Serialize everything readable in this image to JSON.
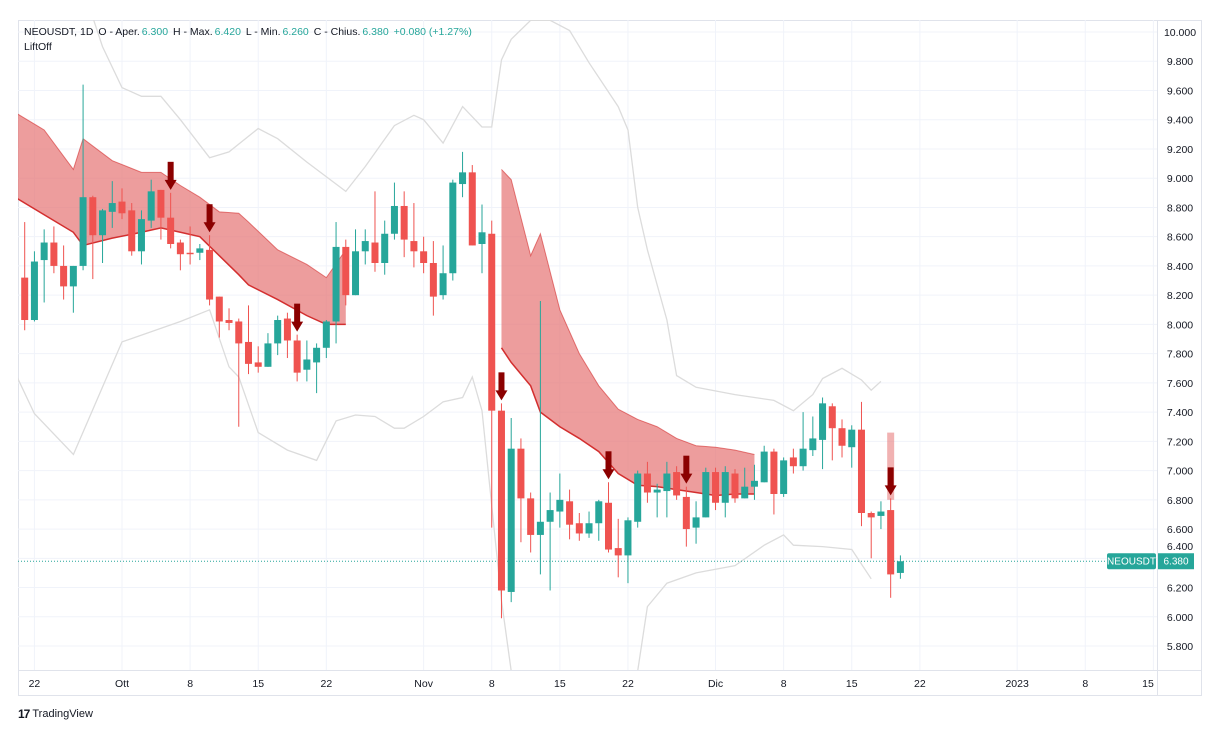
{
  "header": {
    "symbol": "NEOUSDT, 1D",
    "open_label": "O - Aper.",
    "open": "6.300",
    "high_label": "H - Max.",
    "high": "6.420",
    "low_label": "L - Min.",
    "low": "6.260",
    "close_label": "C - Chius.",
    "close": "6.380",
    "change": "+0.080 (+1.27%)",
    "indicator": "LiftOff"
  },
  "price_tag": {
    "symbol": "NEOUSDT",
    "value": "6.380"
  },
  "branding": {
    "logo_text": "TradingView"
  },
  "colors": {
    "up": "#26a69a",
    "down": "#ef5350",
    "cloud_fill": "#e57373",
    "cloud_line": "#d32f2f",
    "signal": "#8b0000",
    "band": "#dcdcdc",
    "last_price": "#26a69a"
  },
  "chart_data": {
    "type": "candlestick",
    "symbol": "NEOUSDT",
    "interval": "1D",
    "ylim": [
      5.7,
      10.1
    ],
    "grid": true,
    "y_ticks": [
      "10.000",
      "9.800",
      "9.600",
      "9.400",
      "9.200",
      "9.000",
      "8.800",
      "8.600",
      "8.400",
      "8.200",
      "8.000",
      "7.800",
      "7.600",
      "7.400",
      "7.200",
      "7.000",
      "6.800",
      "6.600",
      "6.400",
      "6.200",
      "6.000",
      "5.800"
    ],
    "x_ticks": [
      {
        "date": "2022-09-22",
        "label": "22"
      },
      {
        "date": "2022-10-01",
        "label": "Ott"
      },
      {
        "date": "2022-10-08",
        "label": "8"
      },
      {
        "date": "2022-10-15",
        "label": "15"
      },
      {
        "date": "2022-10-22",
        "label": "22"
      },
      {
        "date": "2022-11-01",
        "label": "Nov"
      },
      {
        "date": "2022-11-08",
        "label": "8"
      },
      {
        "date": "2022-11-15",
        "label": "15"
      },
      {
        "date": "2022-11-22",
        "label": "22"
      },
      {
        "date": "2022-12-01",
        "label": "Dic"
      },
      {
        "date": "2022-12-08",
        "label": "8"
      },
      {
        "date": "2022-12-15",
        "label": "15"
      },
      {
        "date": "2022-12-22",
        "label": "22"
      },
      {
        "date": "2023-01-01",
        "label": "2023"
      },
      {
        "date": "2023-01-08",
        "label": "8"
      },
      {
        "date": "2023-01-15",
        "label": "15"
      }
    ],
    "last_price": 6.38,
    "candles": [
      [
        "2022-09-21",
        8.32,
        8.7,
        7.96,
        8.03
      ],
      [
        "2022-09-22",
        8.03,
        8.5,
        8.02,
        8.43
      ],
      [
        "2022-09-23",
        8.44,
        8.65,
        8.15,
        8.56
      ],
      [
        "2022-09-24",
        8.56,
        8.67,
        8.35,
        8.4
      ],
      [
        "2022-09-25",
        8.4,
        8.54,
        8.17,
        8.26
      ],
      [
        "2022-09-26",
        8.26,
        8.4,
        8.08,
        8.4
      ],
      [
        "2022-09-27",
        8.4,
        9.64,
        8.37,
        8.87
      ],
      [
        "2022-09-28",
        8.87,
        8.88,
        8.31,
        8.61
      ],
      [
        "2022-09-29",
        8.61,
        8.79,
        8.42,
        8.78
      ],
      [
        "2022-09-30",
        8.77,
        8.98,
        8.66,
        8.83
      ],
      [
        "2022-10-01",
        8.84,
        8.93,
        8.72,
        8.76
      ],
      [
        "2022-10-02",
        8.78,
        8.83,
        8.47,
        8.5
      ],
      [
        "2022-10-03",
        8.5,
        8.78,
        8.41,
        8.72
      ],
      [
        "2022-10-04",
        8.71,
        8.99,
        8.66,
        8.91
      ],
      [
        "2022-10-05",
        8.92,
        8.92,
        8.58,
        8.73
      ],
      [
        "2022-10-06",
        8.73,
        8.9,
        8.52,
        8.55
      ],
      [
        "2022-10-07",
        8.56,
        8.58,
        8.37,
        8.48
      ],
      [
        "2022-10-08",
        8.49,
        8.67,
        8.41,
        8.48
      ],
      [
        "2022-10-09",
        8.49,
        8.55,
        8.44,
        8.52
      ],
      [
        "2022-10-10",
        8.51,
        8.61,
        8.13,
        8.17
      ],
      [
        "2022-10-11",
        8.19,
        8.19,
        7.91,
        8.02
      ],
      [
        "2022-10-12",
        8.03,
        8.11,
        7.96,
        8.01
      ],
      [
        "2022-10-13",
        8.02,
        8.04,
        7.3,
        7.87
      ],
      [
        "2022-10-14",
        7.88,
        8.13,
        7.66,
        7.73
      ],
      [
        "2022-10-15",
        7.74,
        7.85,
        7.67,
        7.71
      ],
      [
        "2022-10-16",
        7.71,
        7.94,
        7.71,
        7.87
      ],
      [
        "2022-10-17",
        7.87,
        8.06,
        7.79,
        8.03
      ],
      [
        "2022-10-18",
        8.04,
        8.08,
        7.77,
        7.89
      ],
      [
        "2022-10-19",
        7.89,
        7.93,
        7.61,
        7.67
      ],
      [
        "2022-10-20",
        7.69,
        7.89,
        7.61,
        7.76
      ],
      [
        "2022-10-21",
        7.74,
        7.87,
        7.53,
        7.84
      ],
      [
        "2022-10-22",
        7.84,
        8.03,
        7.77,
        8.02
      ],
      [
        "2022-10-23",
        8.02,
        8.7,
        7.87,
        8.53
      ],
      [
        "2022-10-24",
        8.53,
        8.58,
        8.13,
        8.2
      ],
      [
        "2022-10-25",
        8.2,
        8.65,
        8.2,
        8.5
      ],
      [
        "2022-10-26",
        8.5,
        8.65,
        8.41,
        8.57
      ],
      [
        "2022-10-27",
        8.56,
        8.91,
        8.36,
        8.42
      ],
      [
        "2022-10-28",
        8.42,
        8.71,
        8.34,
        8.62
      ],
      [
        "2022-10-29",
        8.62,
        8.97,
        8.58,
        8.81
      ],
      [
        "2022-10-30",
        8.81,
        8.91,
        8.46,
        8.58
      ],
      [
        "2022-10-31",
        8.57,
        8.83,
        8.39,
        8.5
      ],
      [
        "2022-11-01",
        8.5,
        8.6,
        8.35,
        8.42
      ],
      [
        "2022-11-02",
        8.42,
        8.57,
        8.06,
        8.19
      ],
      [
        "2022-11-03",
        8.2,
        8.54,
        8.17,
        8.35
      ],
      [
        "2022-11-04",
        8.35,
        8.99,
        8.3,
        8.97
      ],
      [
        "2022-11-05",
        8.96,
        9.18,
        8.87,
        9.04
      ],
      [
        "2022-11-06",
        9.04,
        9.09,
        8.54,
        8.54
      ],
      [
        "2022-11-07",
        8.55,
        8.82,
        8.35,
        8.63
      ],
      [
        "2022-11-08",
        8.62,
        8.71,
        6.61,
        7.41
      ],
      [
        "2022-11-09",
        7.41,
        7.46,
        5.99,
        6.18
      ],
      [
        "2022-11-10",
        6.17,
        7.36,
        6.1,
        7.15
      ],
      [
        "2022-11-11",
        7.15,
        7.22,
        6.51,
        6.81
      ],
      [
        "2022-11-12",
        6.81,
        6.85,
        6.44,
        6.56
      ],
      [
        "2022-11-13",
        6.56,
        8.16,
        6.29,
        6.65
      ],
      [
        "2022-11-14",
        6.65,
        6.85,
        6.18,
        6.73
      ],
      [
        "2022-11-15",
        6.72,
        6.98,
        6.61,
        6.8
      ],
      [
        "2022-11-16",
        6.79,
        6.87,
        6.53,
        6.63
      ],
      [
        "2022-11-17",
        6.64,
        6.71,
        6.52,
        6.57
      ],
      [
        "2022-11-18",
        6.57,
        6.72,
        6.54,
        6.64
      ],
      [
        "2022-11-19",
        6.64,
        6.8,
        6.52,
        6.79
      ],
      [
        "2022-11-20",
        6.78,
        6.92,
        6.44,
        6.46
      ],
      [
        "2022-11-21",
        6.47,
        6.67,
        6.27,
        6.42
      ],
      [
        "2022-11-22",
        6.42,
        6.68,
        6.23,
        6.66
      ],
      [
        "2022-11-23",
        6.65,
        7.0,
        6.61,
        6.98
      ],
      [
        "2022-11-24",
        6.98,
        7.06,
        6.78,
        6.85
      ],
      [
        "2022-11-25",
        6.85,
        6.91,
        6.68,
        6.87
      ],
      [
        "2022-11-26",
        6.86,
        7.06,
        6.68,
        6.98
      ],
      [
        "2022-11-27",
        6.99,
        7.03,
        6.8,
        6.83
      ],
      [
        "2022-11-28",
        6.82,
        6.89,
        6.48,
        6.6
      ],
      [
        "2022-11-29",
        6.61,
        6.79,
        6.5,
        6.68
      ],
      [
        "2022-11-30",
        6.68,
        7.02,
        6.68,
        6.99
      ],
      [
        "2022-12-01",
        6.99,
        7.02,
        6.73,
        6.78
      ],
      [
        "2022-12-02",
        6.78,
        7.03,
        6.68,
        6.99
      ],
      [
        "2022-12-03",
        6.98,
        7.01,
        6.78,
        6.81
      ],
      [
        "2022-12-04",
        6.81,
        7.02,
        6.81,
        6.89
      ],
      [
        "2022-12-05",
        6.89,
        7.04,
        6.8,
        6.93
      ],
      [
        "2022-12-06",
        6.92,
        7.17,
        6.92,
        7.13
      ],
      [
        "2022-12-07",
        7.13,
        7.15,
        6.7,
        6.84
      ],
      [
        "2022-12-08",
        6.84,
        7.09,
        6.82,
        7.07
      ],
      [
        "2022-12-09",
        7.09,
        7.15,
        6.98,
        7.03
      ],
      [
        "2022-12-10",
        7.03,
        7.4,
        7.0,
        7.15
      ],
      [
        "2022-12-11",
        7.14,
        7.37,
        7.1,
        7.22
      ],
      [
        "2022-12-12",
        7.21,
        7.5,
        7.01,
        7.46
      ],
      [
        "2022-12-13",
        7.44,
        7.46,
        7.07,
        7.29
      ],
      [
        "2022-12-14",
        7.29,
        7.35,
        7.09,
        7.17
      ],
      [
        "2022-12-15",
        7.16,
        7.31,
        7.02,
        7.28
      ],
      [
        "2022-12-16",
        7.28,
        7.47,
        6.62,
        6.71
      ],
      [
        "2022-12-17",
        6.71,
        6.72,
        6.4,
        6.68
      ],
      [
        "2022-12-18",
        6.69,
        6.79,
        6.6,
        6.72
      ],
      [
        "2022-12-19",
        6.73,
        6.81,
        6.13,
        6.29
      ],
      [
        "2022-12-20",
        6.3,
        6.42,
        6.26,
        6.38
      ]
    ],
    "candle_fields": [
      "date",
      "open",
      "high",
      "low",
      "close"
    ],
    "cloud_segments": [
      [
        [
          "2022-09-20",
          9.45,
          8.87
        ],
        [
          "2022-09-23",
          9.33,
          8.75
        ],
        [
          "2022-09-26",
          9.06,
          8.63
        ],
        [
          "2022-09-27",
          9.27,
          8.54
        ],
        [
          "2022-09-30",
          9.12,
          8.59
        ],
        [
          "2022-10-03",
          9.04,
          8.63
        ],
        [
          "2022-10-05",
          9.04,
          8.66
        ],
        [
          "2022-10-07",
          8.95,
          8.63
        ],
        [
          "2022-10-09",
          8.87,
          8.6
        ],
        [
          "2022-10-11",
          8.77,
          8.47
        ],
        [
          "2022-10-13",
          8.76,
          8.34
        ],
        [
          "2022-10-14",
          8.7,
          8.27
        ],
        [
          "2022-10-17",
          8.51,
          8.17
        ],
        [
          "2022-10-20",
          8.41,
          8.06
        ],
        [
          "2022-10-22",
          8.32,
          8.0
        ],
        [
          "2022-10-24",
          8.51,
          8.0
        ]
      ],
      [
        [
          "2022-11-09",
          9.06,
          7.84
        ],
        [
          "2022-11-10",
          8.99,
          7.74
        ],
        [
          "2022-11-12",
          8.47,
          7.58
        ],
        [
          "2022-11-13",
          8.62,
          7.4
        ],
        [
          "2022-11-15",
          8.1,
          7.3
        ],
        [
          "2022-11-17",
          7.8,
          7.22
        ],
        [
          "2022-11-19",
          7.58,
          7.13
        ],
        [
          "2022-11-21",
          7.42,
          6.98
        ],
        [
          "2022-11-23",
          7.35,
          6.9
        ],
        [
          "2022-11-25",
          7.3,
          6.89
        ],
        [
          "2022-11-27",
          7.22,
          6.87
        ],
        [
          "2022-11-29",
          7.17,
          6.85
        ],
        [
          "2022-12-01",
          7.16,
          6.83
        ],
        [
          "2022-12-03",
          7.14,
          6.84
        ],
        [
          "2022-12-05",
          7.11,
          6.84
        ]
      ],
      [
        [
          "2022-12-19",
          7.26,
          6.8
        ]
      ]
    ],
    "cloud_fields": [
      "date",
      "upper",
      "lower"
    ],
    "upper_band": [
      [
        "2022-09-28",
        10.1
      ],
      [
        "2022-09-29",
        9.9
      ],
      [
        "2022-10-01",
        9.62
      ],
      [
        "2022-10-03",
        9.56
      ],
      [
        "2022-10-05",
        9.56
      ],
      [
        "2022-10-07",
        9.4
      ],
      [
        "2022-10-10",
        9.14
      ],
      [
        "2022-10-12",
        9.18
      ],
      [
        "2022-10-15",
        9.34
      ],
      [
        "2022-10-17",
        9.27
      ],
      [
        "2022-10-20",
        9.11
      ],
      [
        "2022-10-24",
        8.91
      ],
      [
        "2022-10-26",
        9.08
      ],
      [
        "2022-10-29",
        9.36
      ],
      [
        "2022-10-31",
        9.43
      ],
      [
        "2022-11-01",
        9.4
      ],
      [
        "2022-11-03",
        9.24
      ],
      [
        "2022-11-05",
        9.49
      ],
      [
        "2022-11-07",
        9.35
      ],
      [
        "2022-11-08",
        9.35
      ],
      [
        "2022-11-09",
        9.81
      ],
      [
        "2022-11-10",
        9.95
      ],
      [
        "2022-11-12",
        10.08
      ],
      [
        "2022-11-14",
        10.08
      ],
      [
        "2022-11-16",
        10.01
      ],
      [
        "2022-11-18",
        9.79
      ],
      [
        "2022-11-21",
        9.49
      ],
      [
        "2022-11-22",
        9.33
      ],
      [
        "2022-11-23",
        8.8
      ],
      [
        "2022-11-24",
        8.51
      ],
      [
        "2022-11-26",
        8.03
      ],
      [
        "2022-11-27",
        7.65
      ],
      [
        "2022-11-29",
        7.57
      ],
      [
        "2022-12-03",
        7.52
      ],
      [
        "2022-12-07",
        7.48
      ],
      [
        "2022-12-09",
        7.41
      ],
      [
        "2022-12-11",
        7.52
      ],
      [
        "2022-12-12",
        7.63
      ],
      [
        "2022-12-14",
        7.7
      ],
      [
        "2022-12-16",
        7.62
      ],
      [
        "2022-12-17",
        7.55
      ],
      [
        "2022-12-18",
        7.61
      ]
    ],
    "lower_band": [
      [
        "2022-09-20",
        7.67
      ],
      [
        "2022-09-22",
        7.39
      ],
      [
        "2022-09-26",
        7.11
      ],
      [
        "2022-10-01",
        7.88
      ],
      [
        "2022-10-07",
        8.02
      ],
      [
        "2022-10-10",
        8.1
      ],
      [
        "2022-10-12",
        7.71
      ],
      [
        "2022-10-13",
        7.64
      ],
      [
        "2022-10-15",
        7.26
      ],
      [
        "2022-10-18",
        7.14
      ],
      [
        "2022-10-21",
        7.07
      ],
      [
        "2022-10-23",
        7.34
      ],
      [
        "2022-10-25",
        7.38
      ],
      [
        "2022-10-27",
        7.37
      ],
      [
        "2022-10-29",
        7.29
      ],
      [
        "2022-10-30",
        7.29
      ],
      [
        "2022-11-01",
        7.37
      ],
      [
        "2022-11-03",
        7.47
      ],
      [
        "2022-11-05",
        7.5
      ],
      [
        "2022-11-06",
        7.64
      ],
      [
        "2022-11-07",
        7.41
      ],
      [
        "2022-11-09",
        6.11
      ],
      [
        "2022-11-10",
        5.63
      ],
      [
        "2022-11-23",
        5.63
      ],
      [
        "2022-11-24",
        6.07
      ],
      [
        "2022-11-26",
        6.23
      ],
      [
        "2022-11-29",
        6.3
      ],
      [
        "2022-12-03",
        6.35
      ],
      [
        "2022-12-06",
        6.49
      ],
      [
        "2022-12-08",
        6.56
      ],
      [
        "2022-12-09",
        6.49
      ],
      [
        "2022-12-12",
        6.48
      ],
      [
        "2022-12-15",
        6.46
      ],
      [
        "2022-12-17",
        6.26
      ]
    ],
    "sell_signals": [
      "2022-10-06",
      "2022-10-10",
      "2022-10-19",
      "2022-11-09",
      "2022-11-20",
      "2022-11-28",
      "2022-12-19"
    ]
  }
}
